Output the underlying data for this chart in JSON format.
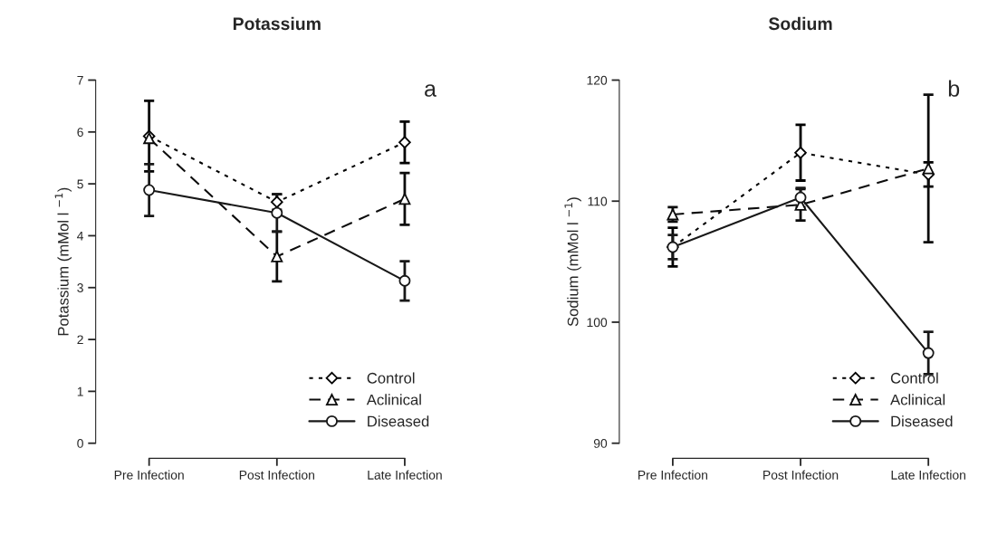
{
  "chart_data": [
    {
      "type": "line",
      "title": "Potassium",
      "ylabel": "Potassium (mMol l $^{−1}$)",
      "categories": [
        "Pre Infection",
        "Post Infection",
        "Late Infection"
      ],
      "ylim": [
        0,
        7
      ],
      "yticks": [
        0,
        1,
        2,
        3,
        4,
        5,
        6,
        7
      ],
      "grid": false,
      "legend": "bottom right",
      "annotations": [
        "a"
      ],
      "series": [
        {
          "name": "Control",
          "color": "#000000",
          "marker": "diamond",
          "line_style": "dotted",
          "values": [
            5.92,
            4.65,
            5.8
          ],
          "errors": [
            0.68,
            0.15,
            0.4
          ]
        },
        {
          "name": "Aclinical",
          "color": "#0c0c0c",
          "marker": "triangle",
          "line_style": "dashed",
          "values": [
            5.88,
            3.6,
            4.71
          ],
          "errors": [
            null,
            0.48,
            0.5
          ]
        },
        {
          "name": "Diseased",
          "color": "#181818",
          "marker": "circle",
          "line_style": "solid",
          "values": [
            4.88,
            4.44,
            3.13
          ],
          "errors": [
            0.5,
            0.36,
            0.38
          ]
        }
      ]
    },
    {
      "type": "line",
      "title": "Sodium",
      "ylabel": "Sodium (mMol l $^{−1}$)",
      "categories": [
        "Pre Infection",
        "Post Infection",
        "Late Infection"
      ],
      "ylim": [
        90,
        120
      ],
      "yticks": [
        90,
        100,
        110,
        120
      ],
      "grid": false,
      "legend": "bottom right",
      "annotations": [
        "b"
      ],
      "series": [
        {
          "name": "Control",
          "color": "#000000",
          "marker": "diamond",
          "line_style": "dotted",
          "values": [
            106.2,
            114.0,
            112.2
          ],
          "errors": [
            1.6,
            2.3,
            1.0
          ]
        },
        {
          "name": "Aclinical",
          "color": "#0c0c0c",
          "marker": "triangle",
          "line_style": "dashed",
          "values": [
            108.9,
            109.7,
            112.7
          ],
          "errors": [
            0.6,
            1.3,
            6.1
          ]
        },
        {
          "name": "Diseased",
          "color": "#181818",
          "marker": "circle",
          "line_style": "solid",
          "values": [
            106.2,
            110.3,
            97.45
          ],
          "errors": [
            1.0,
            0.8,
            1.75
          ]
        }
      ]
    }
  ]
}
